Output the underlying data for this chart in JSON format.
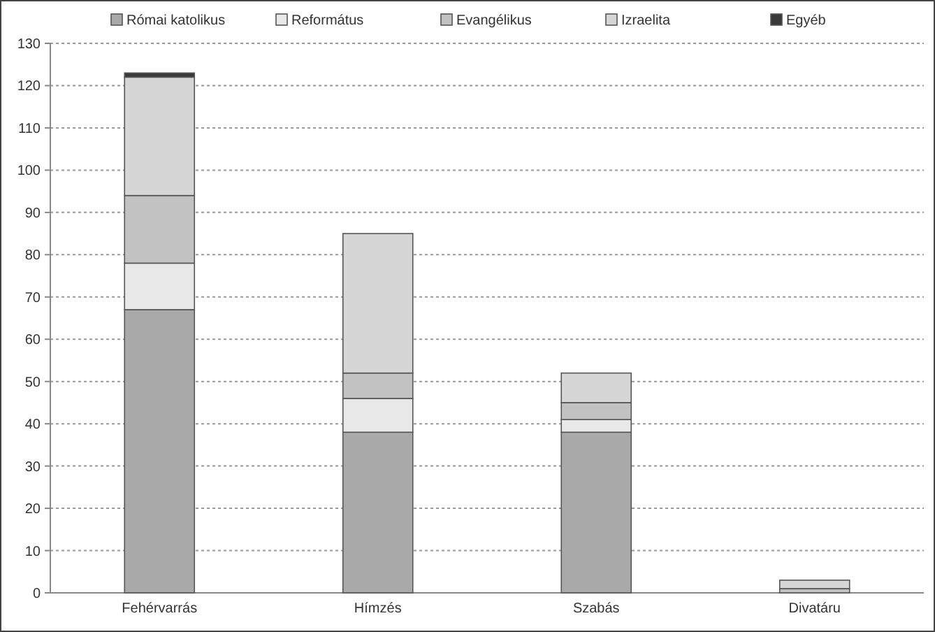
{
  "chart_data": {
    "type": "bar",
    "stacked": true,
    "categories": [
      "Fehérvarrás",
      "Hímzés",
      "Szabás",
      "Divatáru"
    ],
    "series": [
      {
        "name": "Római katolikus",
        "color": "#a9a9a9",
        "values": [
          67,
          38,
          38,
          0
        ]
      },
      {
        "name": "Református",
        "color": "#e8e8e8",
        "values": [
          11,
          8,
          3,
          0
        ]
      },
      {
        "name": "Evangélikus",
        "color": "#c2c2c2",
        "values": [
          16,
          6,
          4,
          1
        ]
      },
      {
        "name": "Izraelita",
        "color": "#d6d6d6",
        "values": [
          28,
          33,
          7,
          2
        ]
      },
      {
        "name": "Egyéb",
        "color": "#3a3a3a",
        "values": [
          1,
          0,
          0,
          0
        ]
      }
    ],
    "ylim": [
      0,
      130
    ],
    "yticks": [
      0,
      10,
      20,
      30,
      40,
      50,
      60,
      70,
      80,
      90,
      100,
      110,
      120,
      130
    ],
    "grid": "y",
    "legend": "top"
  }
}
